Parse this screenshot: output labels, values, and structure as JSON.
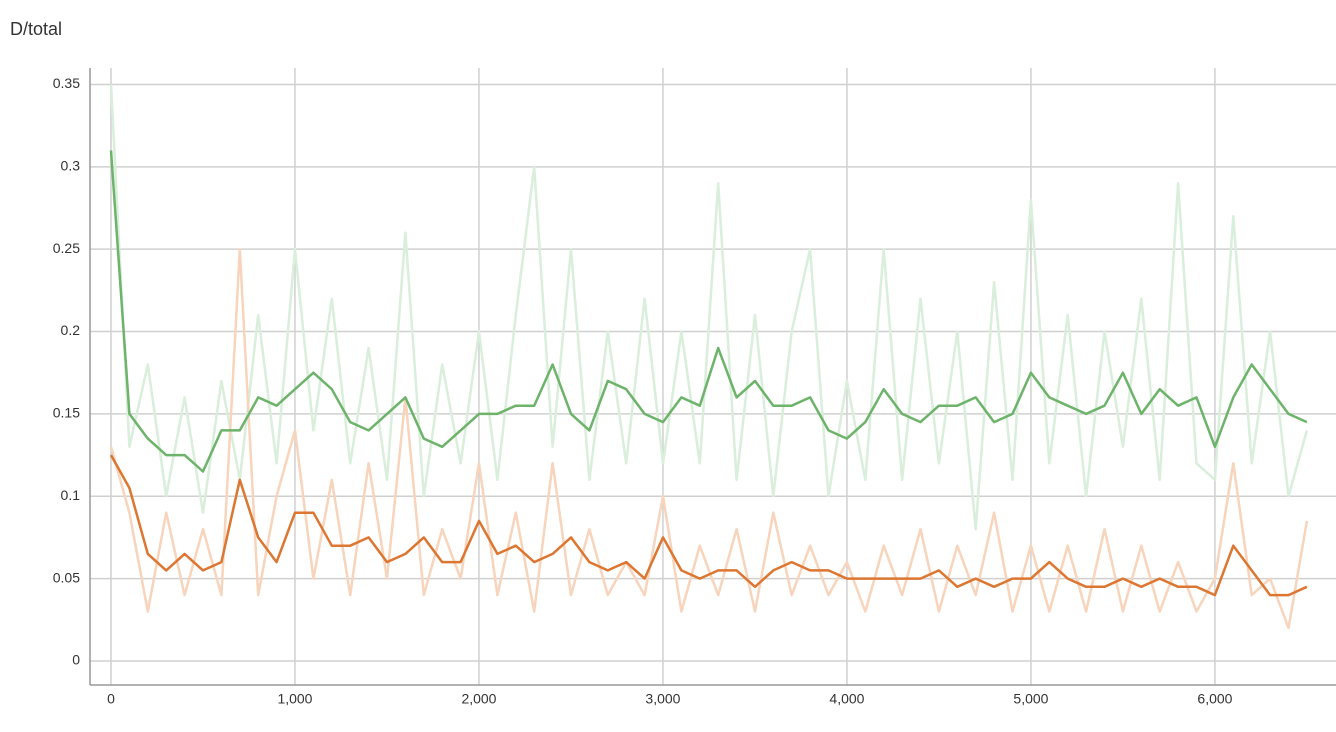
{
  "chart_data": {
    "type": "line",
    "title": "D/total",
    "x": [
      0,
      100,
      200,
      300,
      400,
      500,
      600,
      700,
      800,
      900,
      1000,
      1100,
      1200,
      1300,
      1400,
      1500,
      1600,
      1700,
      1800,
      1900,
      2000,
      2100,
      2200,
      2300,
      2400,
      2500,
      2600,
      2700,
      2800,
      2900,
      3000,
      3100,
      3200,
      3300,
      3400,
      3500,
      3600,
      3700,
      3800,
      3900,
      4000,
      4100,
      4200,
      4300,
      4400,
      4500,
      4600,
      4700,
      4800,
      4900,
      5000,
      5100,
      5200,
      5300,
      5400,
      5500,
      5600,
      5700,
      5800,
      5900,
      6000,
      6100,
      6200,
      6300,
      6400,
      6500
    ],
    "series": [
      {
        "color": "#d9eedb",
        "values": [
          0.35,
          0.13,
          0.18,
          0.1,
          0.16,
          0.09,
          0.17,
          0.11,
          0.21,
          0.12,
          0.25,
          0.14,
          0.22,
          0.12,
          0.19,
          0.11,
          0.26,
          0.1,
          0.18,
          0.12,
          0.2,
          0.11,
          0.21,
          0.3,
          0.13,
          0.25,
          0.11,
          0.2,
          0.12,
          0.22,
          0.12,
          0.2,
          0.12,
          0.29,
          0.11,
          0.21,
          0.1,
          0.2,
          0.25,
          0.1,
          0.17,
          0.11,
          0.25,
          0.11,
          0.22,
          0.12,
          0.2,
          0.08,
          0.23,
          0.11,
          0.28,
          0.12,
          0.21,
          0.1,
          0.2,
          0.13,
          0.22,
          0.11,
          0.29,
          0.12,
          0.11,
          0.27,
          0.12,
          0.2,
          0.1,
          0.14
        ]
      },
      {
        "color": "#f7d4bb",
        "values": [
          0.13,
          0.09,
          0.03,
          0.09,
          0.04,
          0.08,
          0.04,
          0.25,
          0.04,
          0.1,
          0.14,
          0.05,
          0.11,
          0.04,
          0.12,
          0.05,
          0.16,
          0.04,
          0.08,
          0.05,
          0.12,
          0.04,
          0.09,
          0.03,
          0.12,
          0.04,
          0.08,
          0.04,
          0.06,
          0.04,
          0.1,
          0.03,
          0.07,
          0.04,
          0.08,
          0.03,
          0.09,
          0.04,
          0.07,
          0.04,
          0.06,
          0.03,
          0.07,
          0.04,
          0.08,
          0.03,
          0.07,
          0.04,
          0.09,
          0.03,
          0.07,
          0.03,
          0.07,
          0.03,
          0.08,
          0.03,
          0.07,
          0.03,
          0.06,
          0.03,
          0.05,
          0.12,
          0.04,
          0.05,
          0.02,
          0.085
        ]
      },
      {
        "color": "#6db36a",
        "values": [
          0.31,
          0.15,
          0.135,
          0.125,
          0.125,
          0.115,
          0.14,
          0.14,
          0.16,
          0.155,
          0.165,
          0.175,
          0.165,
          0.145,
          0.14,
          0.15,
          0.16,
          0.135,
          0.13,
          0.14,
          0.15,
          0.15,
          0.155,
          0.155,
          0.18,
          0.15,
          0.14,
          0.17,
          0.165,
          0.15,
          0.145,
          0.16,
          0.155,
          0.19,
          0.16,
          0.17,
          0.155,
          0.155,
          0.16,
          0.14,
          0.135,
          0.145,
          0.165,
          0.15,
          0.145,
          0.155,
          0.155,
          0.16,
          0.145,
          0.15,
          0.175,
          0.16,
          0.155,
          0.15,
          0.155,
          0.175,
          0.15,
          0.165,
          0.155,
          0.16,
          0.13,
          0.16,
          0.18,
          0.165,
          0.15,
          0.145
        ]
      },
      {
        "color": "#dc7631",
        "values": [
          0.125,
          0.105,
          0.065,
          0.055,
          0.065,
          0.055,
          0.06,
          0.11,
          0.075,
          0.06,
          0.09,
          0.09,
          0.07,
          0.07,
          0.075,
          0.06,
          0.065,
          0.075,
          0.06,
          0.06,
          0.085,
          0.065,
          0.07,
          0.06,
          0.065,
          0.075,
          0.06,
          0.055,
          0.06,
          0.05,
          0.075,
          0.055,
          0.05,
          0.055,
          0.055,
          0.045,
          0.055,
          0.06,
          0.055,
          0.055,
          0.05,
          0.05,
          0.05,
          0.05,
          0.05,
          0.055,
          0.045,
          0.05,
          0.045,
          0.05,
          0.05,
          0.06,
          0.05,
          0.045,
          0.045,
          0.05,
          0.045,
          0.05,
          0.045,
          0.045,
          0.04,
          0.07,
          0.055,
          0.04,
          0.04,
          0.045
        ]
      }
    ],
    "xlim": [
      -114,
      6658
    ],
    "ylim": [
      -0.0146,
      0.36
    ],
    "xticks": [
      0,
      {
        "value": 1000,
        "label": "1,000"
      },
      {
        "value": 2000,
        "label": "2,000"
      },
      {
        "value": 3000,
        "label": "3,000"
      },
      {
        "value": 4000,
        "label": "4,000"
      },
      {
        "value": 5000,
        "label": "5,000"
      },
      {
        "value": 6000,
        "label": "6,000"
      }
    ],
    "yticks": [
      0,
      0.05,
      0.1,
      0.15,
      0.2,
      0.25,
      0.3,
      0.35
    ],
    "grid": true
  }
}
